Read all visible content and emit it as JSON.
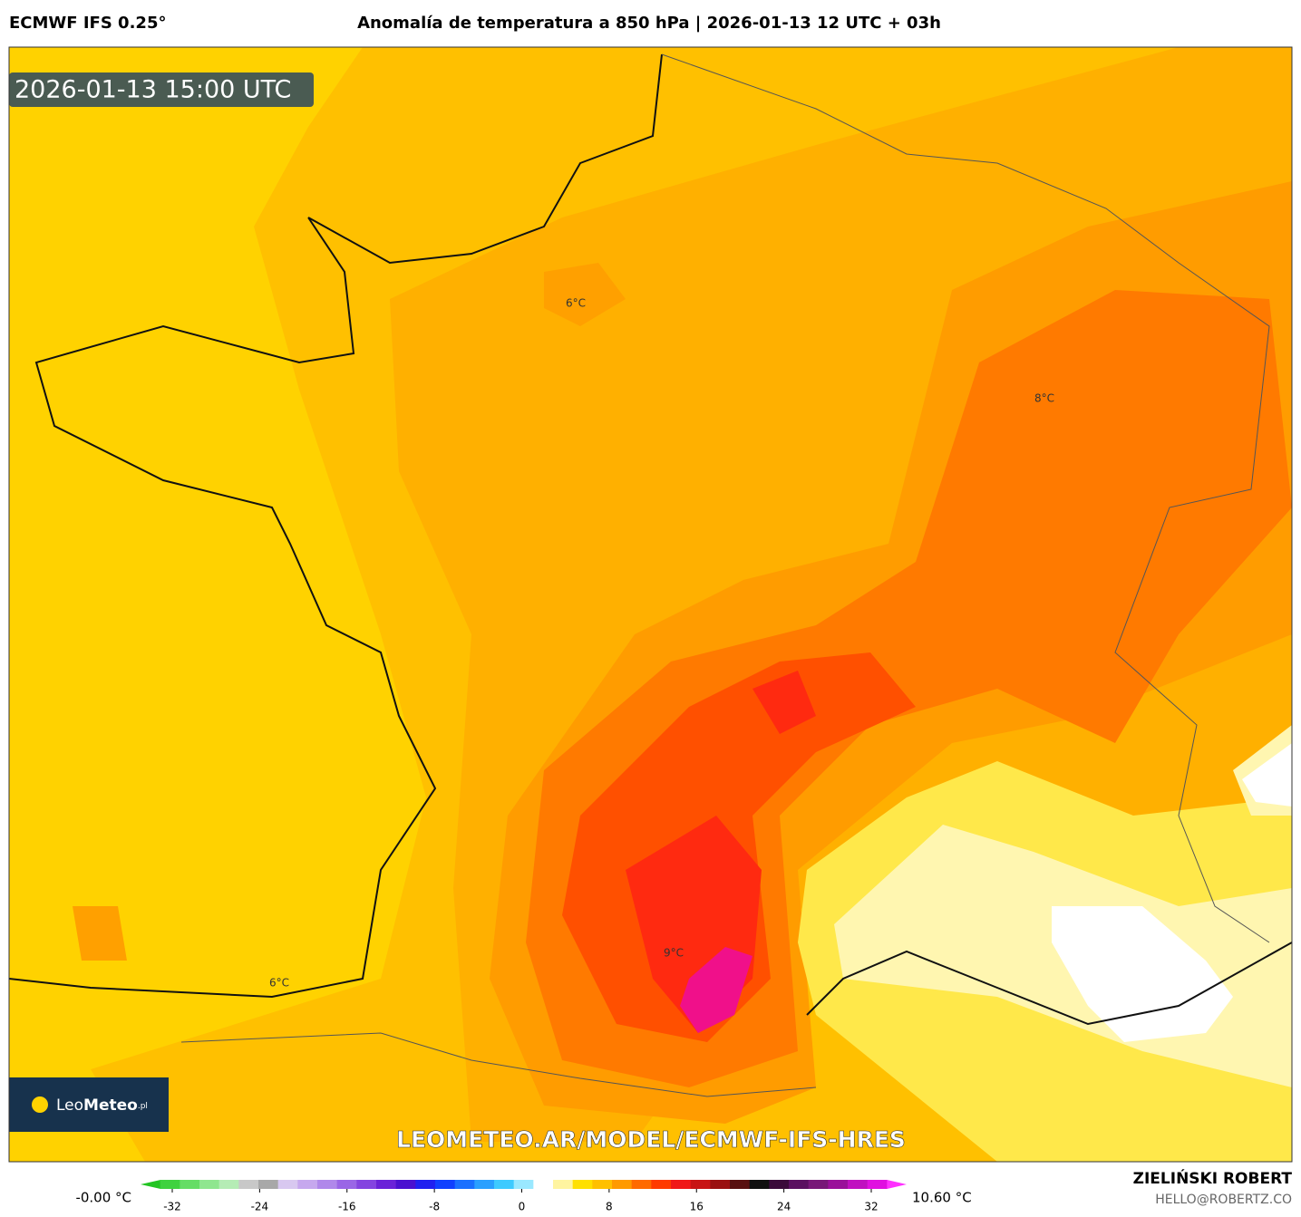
{
  "header": {
    "model": "ECMWF IFS 0.25°",
    "title": "Anomalía de temperatura a 850 hPa | 2026-01-13 12 UTC + 03h"
  },
  "timestamp": "2026-01-13 15:00 UTC",
  "contour_labels": [
    "6°C",
    "8°C",
    "9°C",
    "6°C"
  ],
  "logo": {
    "brand": "Leo",
    "brand_bold": "Meteo",
    "suffix": ".pl"
  },
  "watermark": "LEOMETEO.AR/MODEL/ECMWF-IFS-HRES",
  "colorbar": {
    "min_label": "-0.00 °C",
    "max_label": "10.60 °C",
    "ticks": [
      -32,
      -24,
      -16,
      -8,
      0,
      8,
      16,
      24,
      32
    ],
    "colors": [
      "#22c422",
      "#3fd23f",
      "#66dd66",
      "#8fe68f",
      "#b5ecb5",
      "#c8c8c8",
      "#a8a8a8",
      "#d8c8f0",
      "#c6a8ee",
      "#b088ea",
      "#9a66e6",
      "#8444e0",
      "#6a22d8",
      "#4a10d0",
      "#2020f0",
      "#1040ff",
      "#1a70ff",
      "#2aa0ff",
      "#3ecaff",
      "#9ae8ff",
      "#ffffff",
      "#fff4a0",
      "#ffe000",
      "#ffc000",
      "#ff9a00",
      "#ff6a00",
      "#ff3a00",
      "#f01818",
      "#c81414",
      "#9a1010",
      "#581010",
      "#101010",
      "#3a0a3a",
      "#5a1060",
      "#781878",
      "#9a109a",
      "#c010c0",
      "#e010e0",
      "#ff30ff"
    ]
  },
  "author": {
    "name": "ZIELIŃSKI ROBERT",
    "email": "HELLO@ROBERTZ.CO"
  }
}
